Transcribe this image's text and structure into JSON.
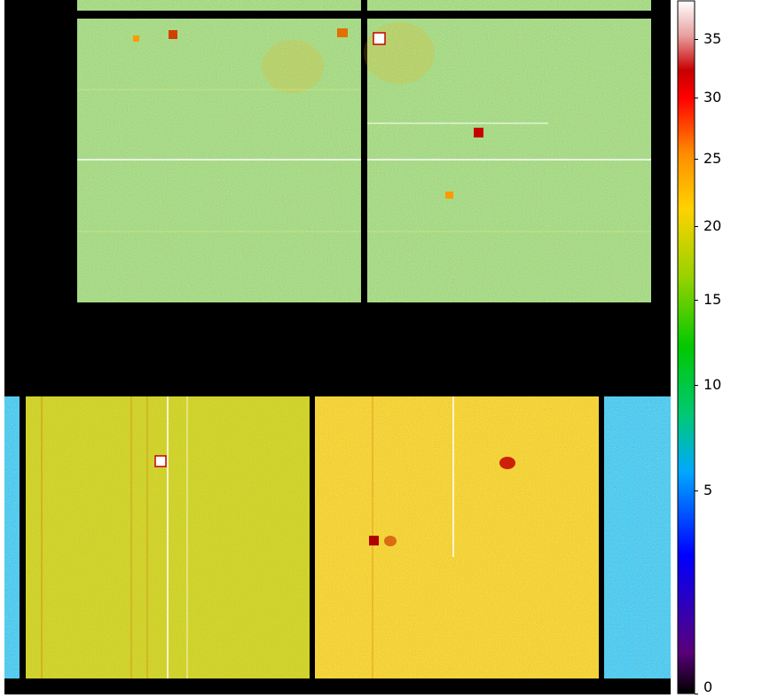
{
  "image": {
    "description_type": "detector-count-image",
    "colormap": [
      "#000000",
      "#5a007a",
      "#0000ff",
      "#00a8ff",
      "#00c878",
      "#00c800",
      "#96d200",
      "#ffd200",
      "#ff8c00",
      "#ff0000",
      "#c80000",
      "#ffffff"
    ],
    "background_color": "#000000"
  },
  "colorbar": {
    "ticks": [
      {
        "label": "35",
        "value": 35
      },
      {
        "label": "30",
        "value": 30
      },
      {
        "label": "25",
        "value": 25
      },
      {
        "label": "20",
        "value": 20
      },
      {
        "label": "15",
        "value": 15
      },
      {
        "label": "10",
        "value": 10
      },
      {
        "label": "5",
        "value": 5
      },
      {
        "label": "0",
        "value": 0
      }
    ]
  }
}
